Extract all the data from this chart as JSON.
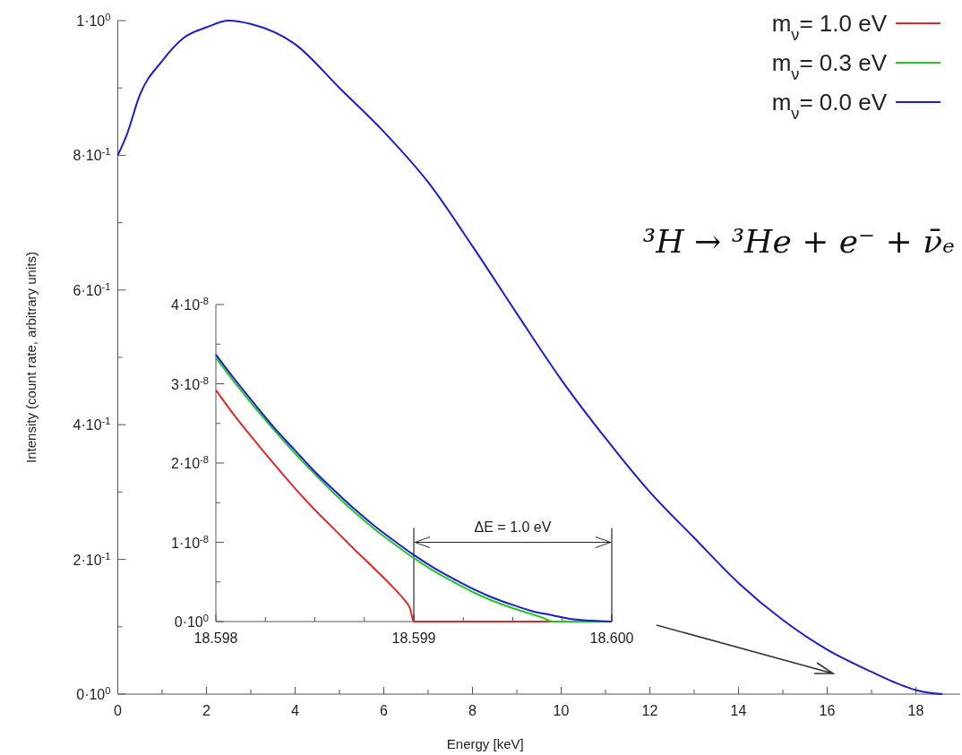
{
  "chart_data": [
    {
      "type": "line",
      "xlabel": "Energy [keV]",
      "ylabel": "Intensity (count rate, arbitrary units)",
      "x": [
        0,
        0.2,
        0.5,
        1,
        1.5,
        2,
        2.5,
        3,
        4,
        5,
        6,
        7,
        8,
        9,
        10,
        11,
        12,
        13,
        14,
        15,
        16,
        17,
        17.5,
        18,
        18.3,
        18.6
      ],
      "series": [
        {
          "color": "#1c1cd0",
          "values": [
            0.8,
            0.83,
            0.89,
            0.94,
            0.975,
            0.99,
            1.0,
            0.995,
            0.965,
            0.9,
            0.835,
            0.76,
            0.665,
            0.565,
            0.467,
            0.38,
            0.3,
            0.232,
            0.165,
            0.11,
            0.066,
            0.033,
            0.018,
            0.006,
            0.002,
            0
          ]
        }
      ],
      "xlim": [
        0,
        19
      ],
      "ylim": [
        0,
        1
      ],
      "xticks": [
        0,
        {
          "value": 1,
          "label": null
        },
        2,
        {
          "value": 3,
          "label": null
        },
        4,
        {
          "value": 5,
          "label": null
        },
        6,
        {
          "value": 7,
          "label": null
        },
        8,
        {
          "value": 9,
          "label": null
        },
        10,
        {
          "value": 11,
          "label": null
        },
        12,
        {
          "value": 13,
          "label": null
        },
        14,
        {
          "value": 15,
          "label": null
        },
        16,
        {
          "value": 17,
          "label": null
        },
        18
      ],
      "yticks": [
        {
          "value": 0,
          "label": "0·10$^{0}$"
        },
        {
          "value": 0.1,
          "label": null
        },
        {
          "value": 0.2,
          "label": "2·10$^{-1}$"
        },
        {
          "value": 0.3,
          "label": null
        },
        {
          "value": 0.4,
          "label": "4·10$^{-1}$"
        },
        {
          "value": 0.5,
          "label": null
        },
        {
          "value": 0.6,
          "label": "6·10$^{-1}$"
        },
        {
          "value": 0.7,
          "label": null
        },
        {
          "value": 0.8,
          "label": "8·10$^{-1}$"
        },
        {
          "value": 0.9,
          "label": null
        },
        {
          "value": 1,
          "label": "1·10$^{0}$"
        }
      ],
      "annotations": [
        "³H → ³He + e⁻ + ν̄ₑ"
      ]
    },
    {
      "type": "line",
      "series": [
        {
          "name": "m$_{ν}$= 1.0 eV",
          "color": "#e02828",
          "x": [
            18.598,
            18.5981,
            18.5982,
            18.5983,
            18.5984,
            18.5985,
            18.5986,
            18.5987,
            18.5988,
            18.5989,
            18.59895,
            18.59898,
            18.599,
            18.6
          ],
          "values": [
            2.92e-08,
            2.58e-08,
            2.27e-08,
            1.97e-08,
            1.68e-08,
            1.41e-08,
            1.16e-08,
            9.1e-09,
            6.7e-09,
            4.2e-09,
            2.8e-09,
            1.7e-09,
            0,
            0
          ]
        },
        {
          "name": "m$_{ν}$= 0.3 eV",
          "color": "#22c822",
          "x": [
            18.598,
            18.5981,
            18.5982,
            18.5983,
            18.5984,
            18.5985,
            18.5986,
            18.5987,
            18.5988,
            18.5989,
            18.599,
            18.5991,
            18.5992,
            18.5993,
            18.5994,
            18.5995,
            18.5996,
            18.59965,
            18.5997,
            18.6
          ],
          "values": [
            3.33e-08,
            3e-08,
            2.69e-08,
            2.4e-08,
            2.12e-08,
            1.86e-08,
            1.61e-08,
            1.38e-08,
            1.17e-08,
            9.8e-09,
            8e-09,
            6.4e-09,
            5e-09,
            3.7e-09,
            2.6e-09,
            1.7e-09,
            9e-10,
            5e-10,
            0,
            0
          ]
        },
        {
          "name": "m$_{ν}$= 0.0 eV",
          "color": "#1c1cd0",
          "x": [
            18.598,
            18.5981,
            18.5982,
            18.5983,
            18.5984,
            18.5985,
            18.5986,
            18.5987,
            18.5988,
            18.5989,
            18.599,
            18.5991,
            18.5992,
            18.5993,
            18.5994,
            18.5995,
            18.5996,
            18.5997,
            18.5998,
            18.5999,
            18.6
          ],
          "values": [
            3.37e-08,
            3.04e-08,
            2.73e-08,
            2.43e-08,
            2.16e-08,
            1.89e-08,
            1.65e-08,
            1.42e-08,
            1.21e-08,
            1.02e-08,
            8.4e-09,
            6.8e-09,
            5.4e-09,
            4.1e-09,
            3e-09,
            2.1e-09,
            1.3e-09,
            8e-10,
            3e-10,
            1e-10,
            0
          ]
        }
      ],
      "xlim": [
        18.598,
        18.6
      ],
      "ylim": [
        0,
        4e-08
      ],
      "xticks": [
        18.598,
        {
          "value": 18.59825,
          "label": null
        },
        {
          "value": 18.5985,
          "label": null
        },
        {
          "value": 18.59875,
          "label": null
        },
        18.599,
        {
          "value": 18.59925,
          "label": null
        },
        {
          "value": 18.5995,
          "label": null
        },
        {
          "value": 18.59975,
          "label": null
        },
        {
          "value": 18.6,
          "label": "18.600"
        }
      ],
      "yticks": [
        {
          "value": 0,
          "label": "0·10$^{0}$"
        },
        {
          "value": 5e-09,
          "label": null
        },
        {
          "value": 1e-08,
          "label": "1·10$^{-8}$"
        },
        {
          "value": 1.5e-08,
          "label": null
        },
        {
          "value": 2e-08,
          "label": "2·10$^{-8}$"
        },
        {
          "value": 2.5e-08,
          "label": null
        },
        {
          "value": 3e-08,
          "label": "3·10$^{-8}$"
        },
        {
          "value": 3.5e-08,
          "label": null
        },
        {
          "value": 4e-08,
          "label": "4·10$^{-8}$"
        }
      ],
      "ref_lines": [
        {
          "axis": "x",
          "value": 18.599,
          "color": "#000000"
        },
        {
          "axis": "x",
          "value": 18.6,
          "color": "#000000"
        }
      ],
      "legend": "top right",
      "annotations": [
        "ΔE = 1.0 eV"
      ]
    }
  ]
}
